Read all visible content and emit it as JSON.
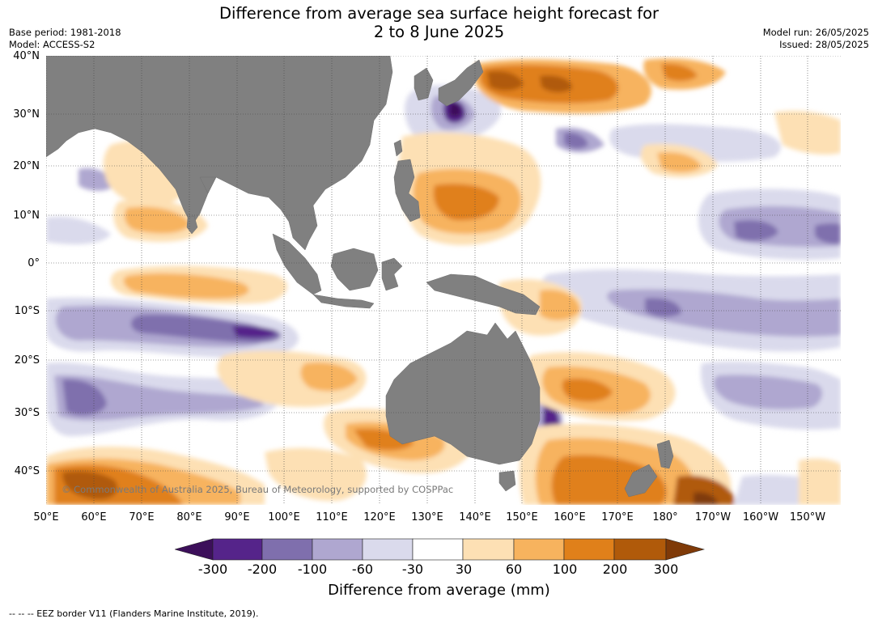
{
  "header": {
    "title_line1": "Difference from average sea surface height forecast for",
    "title_line2": "2 to 8 June 2025",
    "base_period": "Base period: 1981-2018",
    "model": "Model: ACCESS-S2",
    "model_run": "Model run: 26/05/2025",
    "issued": "Issued: 28/05/2025"
  },
  "map": {
    "region": "Indo-Pacific",
    "land_color": "#808080",
    "ocean_color": "#ffffff",
    "grid": "dotted",
    "lat_labels": [
      "40°N",
      "30°N",
      "20°N",
      "10°N",
      "0°",
      "10°S",
      "20°S",
      "30°S",
      "40°S"
    ],
    "lon_labels": [
      "50°E",
      "60°E",
      "70°E",
      "80°E",
      "90°E",
      "100°E",
      "110°E",
      "120°E",
      "130°E",
      "140°E",
      "150°E",
      "160°E",
      "170°E",
      "180°",
      "170°W",
      "160°W",
      "150°W"
    ],
    "copyright": "© Commonwealth of Australia 2025, Bureau of Meteorology, supported by COSPPac"
  },
  "colorbar": {
    "title": "Difference from average (mm)",
    "ticks": [
      "-300",
      "-200",
      "-100",
      "-60",
      "-30",
      "30",
      "60",
      "100",
      "200",
      "300"
    ],
    "colors": [
      "#3c0f5a",
      "#55248a",
      "#7f6fad",
      "#afa7d0",
      "#dadaec",
      "#ffffff",
      "#fde0b4",
      "#f7b35e",
      "#e0801a",
      "#b05a0a",
      "#7f3a08"
    ]
  },
  "footer": {
    "eez_note": "--  --  -- EEZ border V11 (Flanders Marine Institute, 2019)."
  }
}
